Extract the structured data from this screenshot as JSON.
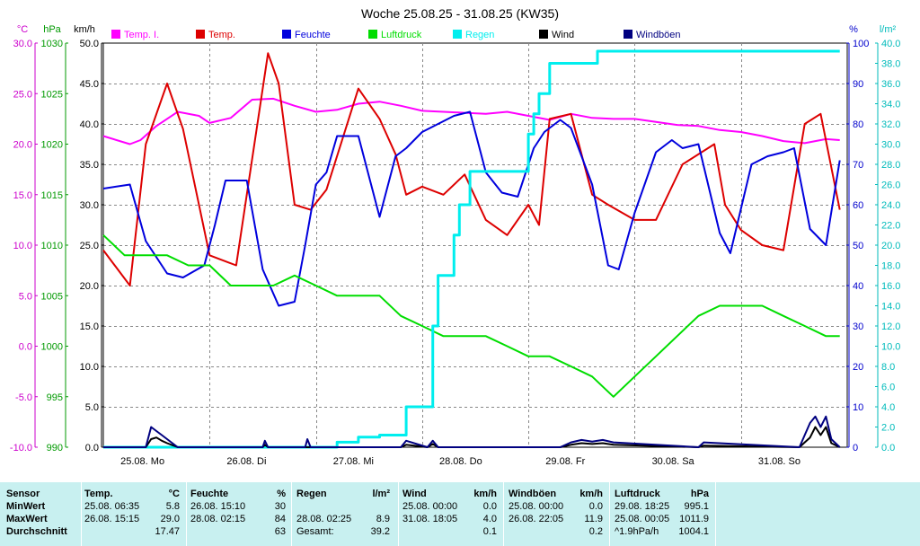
{
  "chart_data": {
    "type": "line",
    "title": "Woche 25.08.25 - 31.08.25 (KW35)",
    "x_range": [
      "25.08.25 00:00",
      "01.09.25 00:00"
    ],
    "x_ticks": [
      {
        "label": "25.08.  Mo",
        "day": 0
      },
      {
        "label": "26.08.  Di",
        "day": 1
      },
      {
        "label": "27.08.  Mi",
        "day": 2
      },
      {
        "label": "28.08.  Do",
        "day": 3
      },
      {
        "label": "29.08.  Fr",
        "day": 4
      },
      {
        "label": "30.08.  Sa",
        "day": 5
      },
      {
        "label": "31.08.  So",
        "day": 6
      }
    ],
    "grid": true,
    "axes": [
      {
        "id": "temp",
        "unit_label": "°C",
        "color": "#cc00cc",
        "range": [
          -10,
          30
        ],
        "step": 5,
        "decimals": 1
      },
      {
        "id": "press",
        "unit_label": "hPa",
        "color": "#009900",
        "range": [
          990,
          1030
        ],
        "step": 5,
        "decimals": 0
      },
      {
        "id": "wind",
        "unit_label": "km/h",
        "color": "#000000",
        "range": [
          0,
          50
        ],
        "step": 5,
        "decimals": 1
      },
      {
        "id": "hum",
        "unit_label": "%",
        "color": "#0000cc",
        "range": [
          0,
          100
        ],
        "step": 10,
        "decimals": 0
      },
      {
        "id": "rain",
        "unit_label": "l/m²",
        "color": "#00bbbb",
        "range": [
          0,
          40
        ],
        "step": 2,
        "decimals": 1
      }
    ],
    "series": [
      {
        "name": "Temp. I.",
        "axis": "temp",
        "color": "#ff00ff",
        "x": [
          0,
          0.25,
          0.35,
          0.5,
          0.7,
          0.9,
          1.0,
          1.2,
          1.4,
          1.6,
          1.8,
          2.0,
          2.2,
          2.4,
          2.6,
          2.8,
          3.0,
          3.2,
          3.4,
          3.6,
          3.8,
          4.0,
          4.2,
          4.4,
          4.6,
          4.8,
          5.0,
          5.2,
          5.4,
          5.6,
          5.8,
          6.0,
          6.2,
          6.4,
          6.6,
          6.8,
          6.93
        ],
        "y": [
          20.8,
          20.0,
          20.4,
          21.8,
          23.2,
          22.8,
          22.1,
          22.6,
          24.4,
          24.5,
          23.8,
          23.2,
          23.4,
          24.0,
          24.2,
          23.8,
          23.3,
          23.2,
          23.1,
          23.0,
          23.2,
          22.8,
          22.4,
          23.0,
          22.6,
          22.5,
          22.5,
          22.2,
          21.9,
          21.8,
          21.4,
          21.2,
          20.8,
          20.3,
          20.1,
          20.5,
          20.4
        ]
      },
      {
        "name": "Temp.",
        "axis": "temp",
        "color": "#dd0000",
        "x": [
          0,
          0.25,
          0.4,
          0.6,
          0.75,
          1.0,
          1.25,
          1.55,
          1.65,
          1.8,
          1.95,
          2.1,
          2.4,
          2.6,
          2.75,
          2.85,
          3.0,
          3.2,
          3.4,
          3.6,
          3.8,
          4.0,
          4.1,
          4.2,
          4.4,
          4.6,
          4.75,
          5.0,
          5.2,
          5.45,
          5.75,
          5.85,
          6.0,
          6.2,
          6.4,
          6.6,
          6.75,
          6.93
        ],
        "y": [
          9.5,
          6.0,
          20.0,
          26.0,
          21.5,
          9.0,
          8.0,
          29.0,
          26.0,
          14.0,
          13.5,
          15.5,
          25.5,
          22.5,
          19.0,
          15.0,
          15.8,
          15.0,
          17.0,
          12.5,
          11.0,
          14.0,
          12.0,
          22.5,
          23.0,
          15.0,
          14.0,
          12.5,
          12.5,
          18.0,
          20.0,
          14.0,
          11.5,
          10.0,
          9.5,
          22.0,
          23.0,
          13.5
        ]
      },
      {
        "name": "Feuchte",
        "axis": "hum",
        "color": "#0000dd",
        "x": [
          0,
          0.25,
          0.4,
          0.6,
          0.75,
          0.95,
          1.05,
          1.15,
          1.35,
          1.5,
          1.65,
          1.8,
          1.9,
          2.0,
          2.1,
          2.2,
          2.4,
          2.6,
          2.75,
          2.85,
          3.0,
          3.15,
          3.3,
          3.45,
          3.6,
          3.75,
          3.9,
          4.05,
          4.15,
          4.3,
          4.4,
          4.6,
          4.75,
          4.85,
          5.0,
          5.2,
          5.35,
          5.45,
          5.6,
          5.8,
          5.9,
          6.1,
          6.25,
          6.4,
          6.5,
          6.65,
          6.8,
          6.93
        ],
        "y": [
          64,
          65,
          51,
          43,
          42,
          45,
          55,
          66,
          66,
          44,
          35,
          36,
          50,
          65,
          68,
          77,
          77,
          57,
          72,
          74,
          78,
          80,
          82,
          83,
          68,
          63,
          62,
          74,
          78,
          81,
          79,
          65,
          45,
          44,
          58,
          73,
          76,
          74,
          75,
          53,
          48,
          70,
          72,
          73,
          74,
          54,
          50,
          71
        ]
      },
      {
        "name": "Luftdruck",
        "axis": "press",
        "color": "#00dd00",
        "x": [
          0,
          0.2,
          0.4,
          0.6,
          0.8,
          1.0,
          1.2,
          1.4,
          1.6,
          1.8,
          2.0,
          2.2,
          2.4,
          2.6,
          2.8,
          3.0,
          3.2,
          3.4,
          3.6,
          3.8,
          4.0,
          4.2,
          4.4,
          4.6,
          4.8,
          5.0,
          5.2,
          5.4,
          5.6,
          5.8,
          6.0,
          6.2,
          6.4,
          6.6,
          6.8,
          6.93
        ],
        "y": [
          1011,
          1009,
          1009,
          1009,
          1008,
          1008,
          1006,
          1006,
          1006,
          1007,
          1006,
          1005,
          1005,
          1005,
          1003,
          1002,
          1001,
          1001,
          1001,
          1000,
          999,
          999,
          998,
          997,
          995,
          997,
          999,
          1001,
          1003,
          1004,
          1004,
          1004,
          1003,
          1002,
          1001,
          1001
        ]
      },
      {
        "name": "Regen",
        "axis": "rain",
        "color": "#00eeee",
        "x": [
          0,
          1.95,
          2.1,
          2.2,
          2.25,
          2.4,
          2.5,
          2.6,
          2.7,
          2.85,
          2.95,
          3.05,
          3.1,
          3.15,
          3.3,
          3.35,
          3.45,
          3.55,
          3.75,
          3.95,
          4.0,
          4.05,
          4.1,
          4.2,
          4.4,
          4.6,
          4.65,
          5.0,
          5.5,
          6.0,
          6.5,
          6.93
        ],
        "y": [
          0,
          0,
          0,
          0.5,
          0.5,
          1.0,
          1.0,
          1.2,
          1.2,
          4.0,
          4.0,
          4.0,
          12.0,
          17.0,
          21.0,
          24.0,
          27.3,
          27.3,
          27.3,
          27.3,
          31.0,
          33.0,
          35.0,
          38.0,
          38.0,
          38.0,
          39.2,
          39.2,
          39.2,
          39.2,
          39.2,
          39.2
        ]
      },
      {
        "name": "Wind",
        "axis": "wind",
        "color": "#000000",
        "x": [
          0,
          0.4,
          0.45,
          0.5,
          0.55,
          0.6,
          0.7,
          1.5,
          1.52,
          1.55,
          2.8,
          2.85,
          3.05,
          3.1,
          3.15,
          4.3,
          4.4,
          4.5,
          4.6,
          4.7,
          4.8,
          5.6,
          5.65,
          6.55,
          6.65,
          6.7,
          6.75,
          6.8,
          6.85,
          6.93
        ],
        "y": [
          0,
          0,
          1.0,
          1.2,
          0.8,
          0.5,
          0,
          0,
          0.3,
          0,
          0,
          0.3,
          0,
          0.4,
          0,
          0,
          0.3,
          0.5,
          0.4,
          0.5,
          0.3,
          0,
          0.2,
          0,
          1.2,
          2.5,
          1.5,
          2.5,
          0.5,
          0
        ]
      },
      {
        "name": "Windböen",
        "axis": "wind",
        "color": "#000080",
        "x": [
          0,
          0.4,
          0.45,
          0.5,
          0.55,
          0.6,
          0.7,
          1.5,
          1.52,
          1.55,
          1.9,
          1.92,
          1.95,
          2.8,
          2.85,
          3.05,
          3.1,
          3.15,
          4.3,
          4.4,
          4.5,
          4.6,
          4.7,
          4.8,
          5.6,
          5.65,
          6.55,
          6.6,
          6.65,
          6.7,
          6.75,
          6.8,
          6.85,
          6.93
        ],
        "y": [
          0,
          0,
          2.5,
          2.0,
          1.5,
          1.0,
          0,
          0,
          0.8,
          0,
          0,
          1.0,
          0,
          0,
          0.8,
          0,
          0.8,
          0,
          0,
          0.6,
          0.9,
          0.7,
          0.9,
          0.6,
          0,
          0.6,
          0,
          1.5,
          3.0,
          3.8,
          2.5,
          3.8,
          1.0,
          0
        ]
      }
    ]
  },
  "summary": {
    "row_labels": [
      "Sensor",
      "MinWert",
      "MaxWert",
      "Durchschnitt"
    ],
    "temp": {
      "title": "Temp.",
      "unit": "°C",
      "min_time": "25.08.  06:35",
      "min_val": "5.8",
      "max_time": "26.08.  15:15",
      "max_val": "29.0",
      "avg_val": "17.47"
    },
    "hum": {
      "title": "Feuchte",
      "unit": "%",
      "min_time": "26.08.  15:10",
      "min_val": "30",
      "max_time": "28.08.  02:15",
      "max_val": "84",
      "avg_val": "63"
    },
    "rain": {
      "title": "Regen",
      "unit": "l/m²",
      "max_time": "28.08.  02:25",
      "max_val": "8.9",
      "total_label": "Gesamt:",
      "total_val": "39.2"
    },
    "wind": {
      "title": "Wind",
      "unit": "km/h",
      "min_time": "25.08.  00:00",
      "min_val": "0.0",
      "max_time": "31.08.  18:05",
      "max_val": "4.0",
      "avg_val": "0.1"
    },
    "gust": {
      "title": "Windböen",
      "unit": "km/h",
      "min_time": "25.08.  00:00",
      "min_val": "0.0",
      "max_time": "26.08.  22:05",
      "max_val": "11.9",
      "avg_val": "0.2"
    },
    "press": {
      "title": "Luftdruck",
      "unit": "hPa",
      "min_time": "29.08.  18:25",
      "min_val": "995.1",
      "max_time": "25.08.  00:05",
      "max_val": "1011.9",
      "trend": "^1.9hPa/h",
      "avg_val": "1004.1"
    }
  }
}
